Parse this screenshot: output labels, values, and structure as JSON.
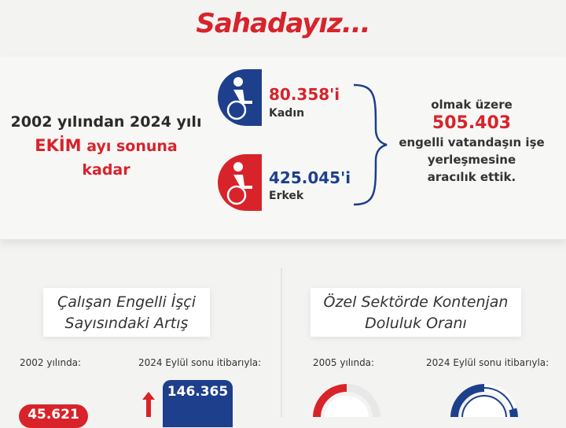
{
  "header": {
    "title": "Sahadayız..."
  },
  "intro": {
    "line1": "2002 yılından 2024 yılı",
    "month": "EKİM",
    "line2_rest": " ayı sonuna",
    "line3": "kadar"
  },
  "female": {
    "value": "80.358'i",
    "label": "Kadın",
    "icon": "wheelchair-woman-icon",
    "color": "#1d3f8c"
  },
  "male": {
    "value": "425.045'i",
    "label": "Erkek",
    "icon": "wheelchair-man-icon",
    "color": "#d8232a"
  },
  "summary": {
    "line1": "olmak üzere",
    "total": "505.403",
    "line2": "engelli vatandaşın işe",
    "line3": "yerleşmesine",
    "line4": "aracılık ettik."
  },
  "workers": {
    "title1": "Çalışan Engelli İşçi",
    "title2": "Sayısındaki Artış",
    "label_2002": "2002 yılında:",
    "label_2024": "2024 Eylül sonu itibarıyla:",
    "value_2002": "45.621",
    "value_2024": "146.365"
  },
  "quota": {
    "title1": "Özel Sektörde Kontenjan",
    "title2": "Doluluk Oranı",
    "label_2005": "2005 yılında:",
    "label_2024": "2024 Eylül sonu itibarıyla:"
  },
  "colors": {
    "red": "#d8232a",
    "navy": "#1d3f8c"
  }
}
